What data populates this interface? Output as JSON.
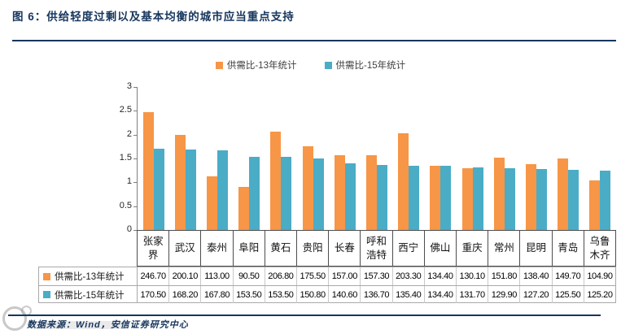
{
  "figure": {
    "title": "图 6：供给轻度过剩以及基本均衡的城市应当重点支持",
    "source_note": "数据来源：Wind，安信证券研究中心"
  },
  "colors": {
    "accent_navy": "#17365D",
    "series_13_orange": "#F79646",
    "series_15_teal": "#4BACC6"
  },
  "chart_data": {
    "type": "bar",
    "title": "",
    "xlabel": "",
    "ylabel": "",
    "categories": [
      "张家界",
      "武汉",
      "泰州",
      "阜阳",
      "黄石",
      "贵阳",
      "长春",
      "呼和浩特",
      "西宁",
      "佛山",
      "重庆",
      "常州",
      "昆明",
      "青岛",
      "乌鲁木齐"
    ],
    "series": [
      {
        "name": "供需比-13年统计",
        "color": "#F79646",
        "values": [
          246.7,
          200.1,
          113.0,
          90.5,
          206.8,
          175.5,
          157.0,
          157.3,
          203.3,
          134.4,
          130.1,
          151.8,
          138.4,
          149.7,
          104.9
        ]
      },
      {
        "name": "供需比-15年统计",
        "color": "#4BACC6",
        "values": [
          170.5,
          168.2,
          167.8,
          153.5,
          153.5,
          150.8,
          140.6,
          136.7,
          135.4,
          134.4,
          131.7,
          129.9,
          127.2,
          125.5,
          125.2
        ]
      }
    ],
    "value_scale": 0.01,
    "ylim": [
      0,
      3
    ],
    "yticks": [
      0,
      0.5,
      1,
      1.5,
      2,
      2.5,
      3
    ],
    "grid": false,
    "legend_position": "top-center",
    "data_table_shown": true,
    "table_value_format": "2-decimals"
  }
}
